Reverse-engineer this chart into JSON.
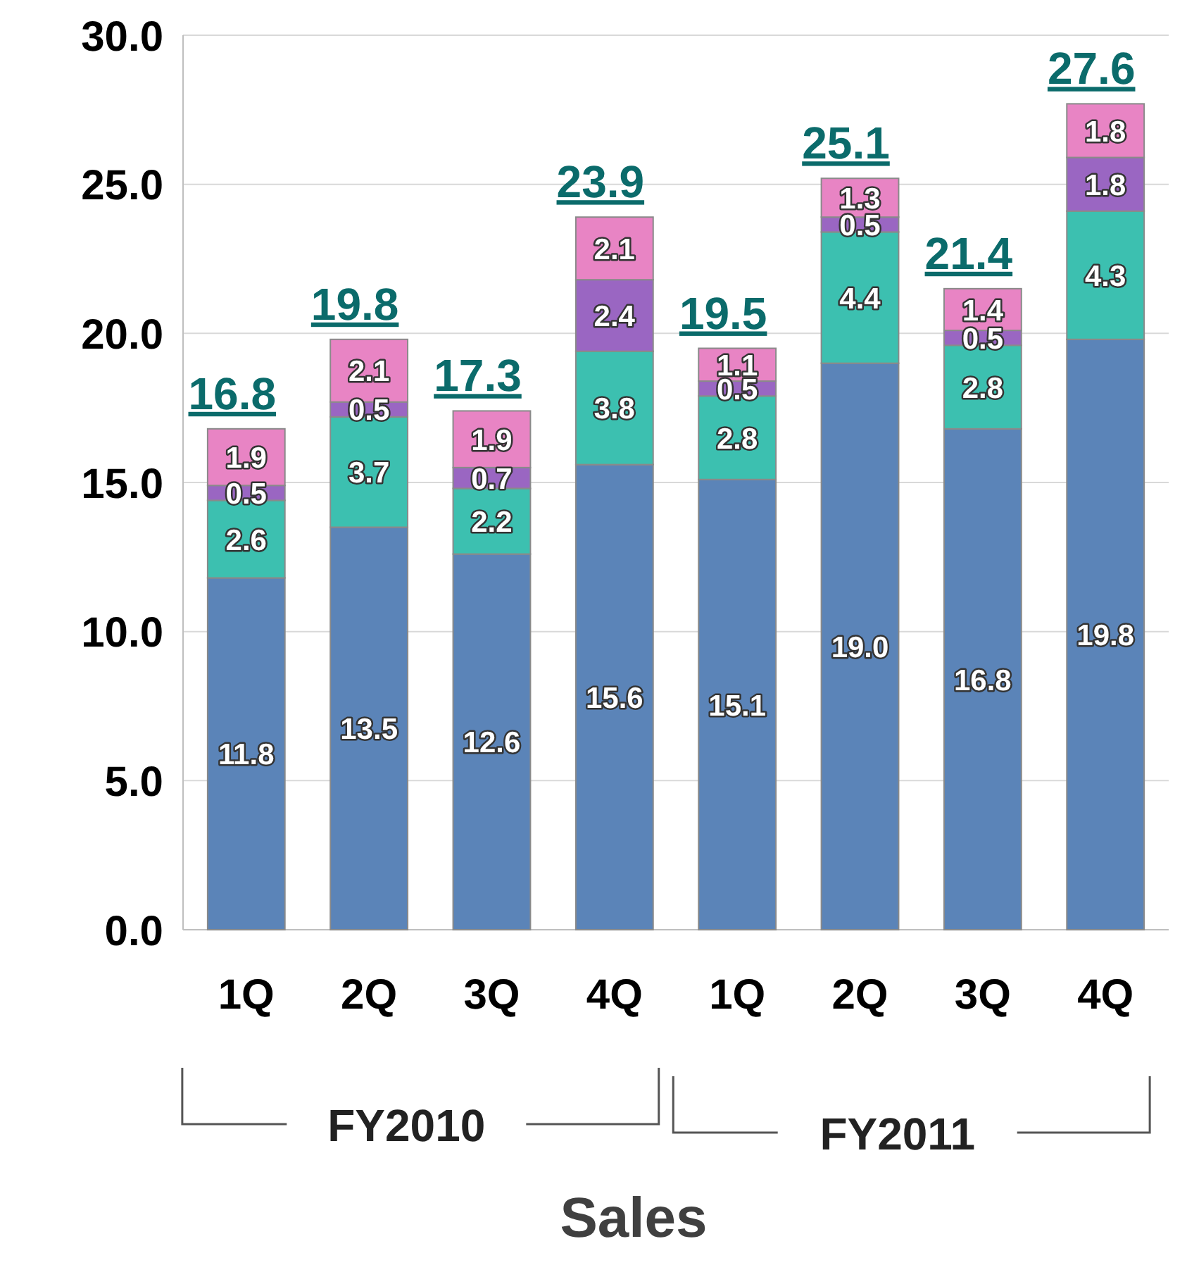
{
  "chart_data": {
    "type": "bar",
    "stacked": true,
    "xlabel": "Sales",
    "categories": [
      "1Q",
      "2Q",
      "3Q",
      "4Q",
      "1Q",
      "2Q",
      "3Q",
      "4Q"
    ],
    "series": [
      {
        "color": "#5b84b8",
        "values": [
          11.8,
          13.5,
          12.6,
          15.6,
          15.1,
          19.0,
          16.8,
          19.8
        ],
        "value_labels": [
          "11.8",
          "13.5",
          "12.6",
          "15.6",
          "15.1",
          "19.0",
          "16.8",
          "19.8"
        ]
      },
      {
        "color": "#3cc0b0",
        "values": [
          2.6,
          3.7,
          2.2,
          3.8,
          2.8,
          4.4,
          2.8,
          4.3
        ]
      },
      {
        "color": "#9a66c2",
        "values": [
          0.5,
          0.5,
          0.7,
          2.4,
          0.5,
          0.5,
          0.5,
          1.8
        ]
      },
      {
        "color": "#e884c4",
        "values": [
          1.9,
          2.1,
          1.9,
          2.1,
          1.1,
          1.3,
          1.4,
          1.8
        ]
      }
    ],
    "data_labels": true,
    "totals": [
      "16.8",
      "19.8",
      "17.3",
      "23.9",
      "19.5",
      "25.1",
      "21.4",
      "27.6"
    ],
    "ylim": [
      0,
      30
    ],
    "yticks": [
      {
        "value": 0,
        "label": "0.0"
      },
      {
        "value": 5,
        "label": "5.0"
      },
      {
        "value": 10,
        "label": "10.0"
      },
      {
        "value": 15,
        "label": "15.0"
      },
      {
        "value": 20,
        "label": "20.0"
      },
      {
        "value": 25,
        "label": "25.0"
      },
      {
        "value": 30,
        "label": "30.0"
      }
    ],
    "grid": "y",
    "annotations": [
      "FY2010",
      "FY2011"
    ]
  }
}
